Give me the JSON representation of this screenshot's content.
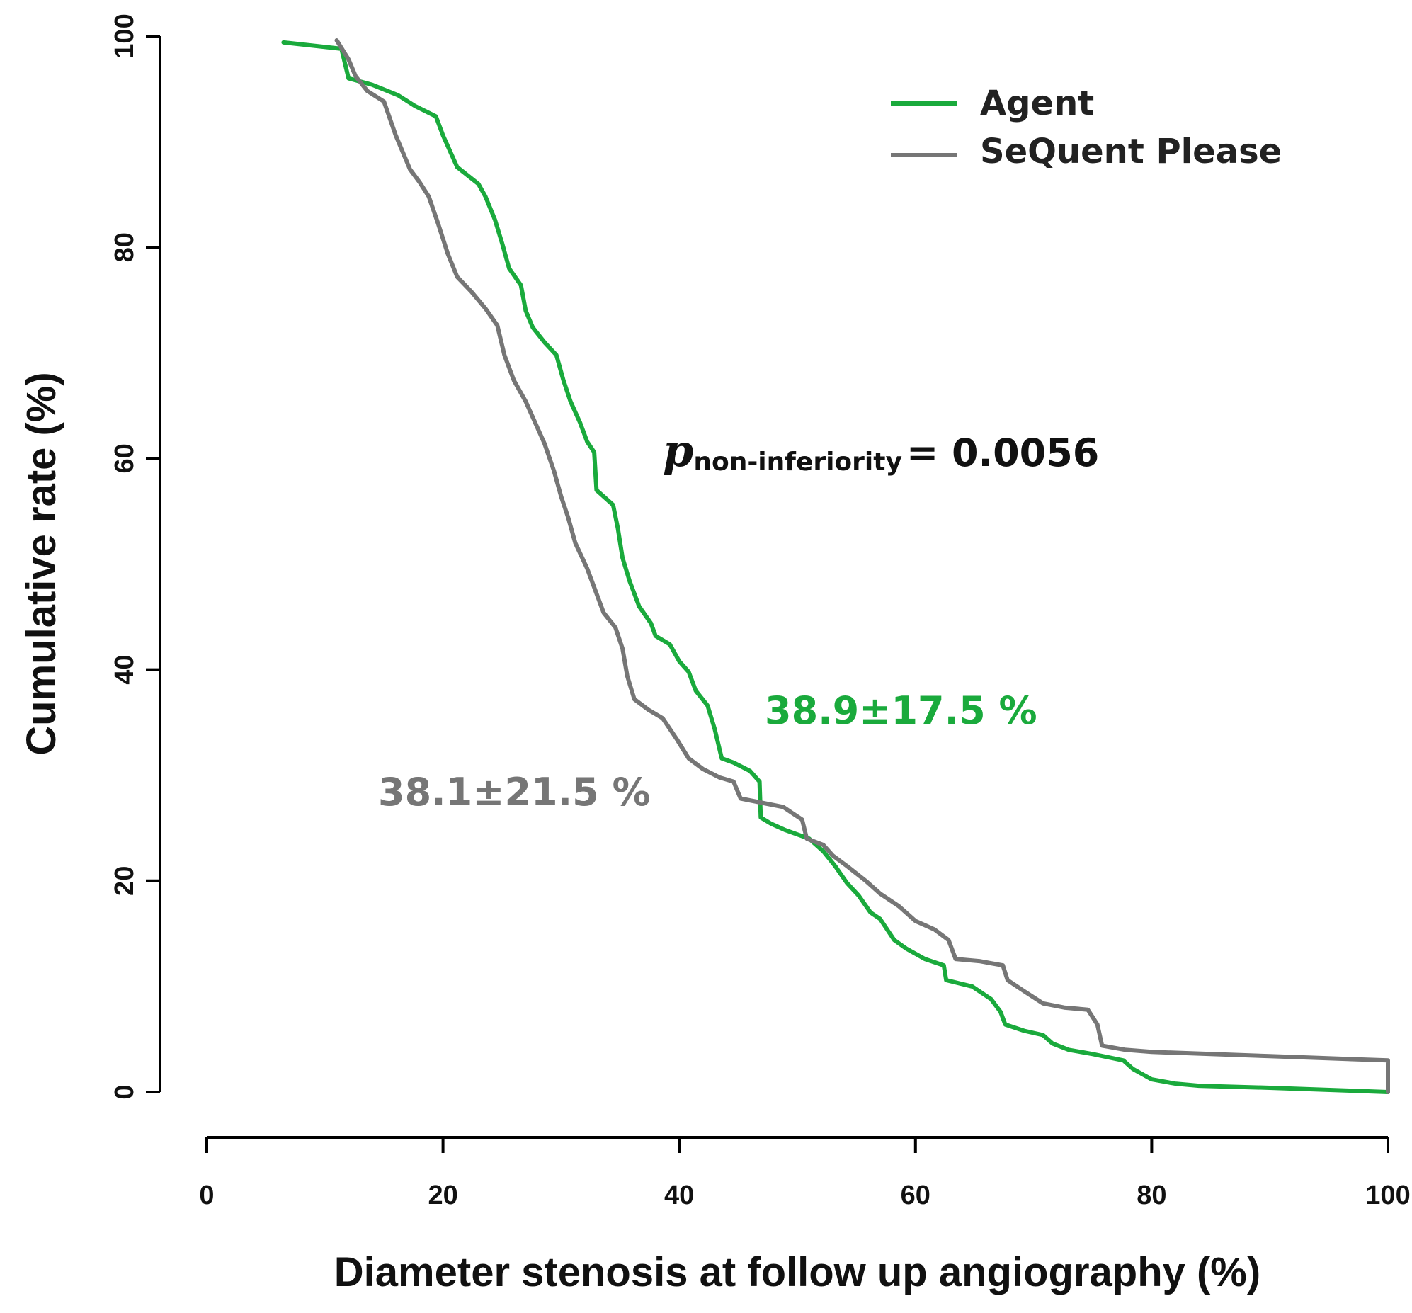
{
  "chart_data": {
    "type": "line",
    "title": "",
    "xlabel": "Diameter stenosis at follow up angiography (%)",
    "ylabel": "Cumulative rate (%)",
    "xlim": [
      0,
      100
    ],
    "ylim": [
      0,
      100
    ],
    "x_ticks": [
      "0",
      "20",
      "40",
      "60",
      "80",
      "100"
    ],
    "y_ticks": [
      "0",
      "20",
      "40",
      "60",
      "80",
      "100"
    ],
    "grid": false,
    "legend_position": "top-right",
    "series": [
      {
        "name": "Agent",
        "color": "#1aaa3c",
        "points": [
          [
            6.5,
            99.4
          ],
          [
            11.4,
            98.8
          ],
          [
            12.0,
            96.0
          ],
          [
            14.0,
            95.4
          ],
          [
            16.2,
            94.4
          ],
          [
            17.6,
            93.4
          ],
          [
            19.4,
            92.4
          ],
          [
            20.0,
            90.6
          ],
          [
            21.2,
            87.6
          ],
          [
            23.0,
            86.0
          ],
          [
            23.6,
            84.8
          ],
          [
            24.4,
            82.6
          ],
          [
            25.0,
            80.4
          ],
          [
            25.6,
            78.0
          ],
          [
            26.6,
            76.4
          ],
          [
            27.0,
            74.0
          ],
          [
            27.6,
            72.4
          ],
          [
            28.6,
            71.0
          ],
          [
            29.6,
            69.8
          ],
          [
            30.2,
            67.4
          ],
          [
            30.8,
            65.4
          ],
          [
            31.6,
            63.4
          ],
          [
            32.2,
            61.6
          ],
          [
            32.8,
            60.6
          ],
          [
            33.0,
            57.0
          ],
          [
            34.4,
            55.6
          ],
          [
            34.8,
            53.4
          ],
          [
            35.2,
            50.6
          ],
          [
            35.8,
            48.4
          ],
          [
            36.6,
            46.0
          ],
          [
            37.6,
            44.4
          ],
          [
            38.0,
            43.2
          ],
          [
            39.2,
            42.4
          ],
          [
            40.0,
            40.8
          ],
          [
            40.8,
            39.8
          ],
          [
            41.4,
            38.0
          ],
          [
            42.4,
            36.6
          ],
          [
            43.0,
            34.4
          ],
          [
            43.6,
            31.6
          ],
          [
            44.6,
            31.2
          ],
          [
            46.0,
            30.4
          ],
          [
            46.8,
            29.4
          ],
          [
            46.9,
            26.0
          ],
          [
            47.8,
            25.4
          ],
          [
            49.0,
            24.8
          ],
          [
            51.0,
            24.0
          ],
          [
            52.2,
            22.8
          ],
          [
            53.2,
            21.4
          ],
          [
            54.2,
            19.8
          ],
          [
            55.2,
            18.6
          ],
          [
            56.2,
            17.0
          ],
          [
            57.0,
            16.4
          ],
          [
            58.2,
            14.4
          ],
          [
            59.2,
            13.6
          ],
          [
            60.8,
            12.6
          ],
          [
            62.4,
            12.0
          ],
          [
            62.6,
            10.6
          ],
          [
            64.8,
            10.0
          ],
          [
            66.4,
            8.8
          ],
          [
            67.2,
            7.6
          ],
          [
            67.6,
            6.4
          ],
          [
            69.2,
            5.8
          ],
          [
            70.8,
            5.4
          ],
          [
            71.6,
            4.6
          ],
          [
            73.0,
            4.0
          ],
          [
            75.0,
            3.6
          ],
          [
            77.6,
            3.0
          ],
          [
            78.4,
            2.2
          ],
          [
            80.0,
            1.2
          ],
          [
            82.0,
            0.8
          ],
          [
            84.0,
            0.6
          ],
          [
            90.0,
            0.4
          ],
          [
            100.0,
            0.0
          ]
        ]
      },
      {
        "name": "SeQuent Please",
        "color": "#767676",
        "points": [
          [
            11.0,
            99.6
          ],
          [
            12.0,
            97.8
          ],
          [
            12.6,
            96.2
          ],
          [
            13.6,
            94.8
          ],
          [
            15.0,
            93.8
          ],
          [
            16.0,
            90.6
          ],
          [
            17.2,
            87.4
          ],
          [
            18.0,
            86.2
          ],
          [
            18.8,
            84.8
          ],
          [
            19.6,
            82.2
          ],
          [
            20.4,
            79.4
          ],
          [
            21.2,
            77.2
          ],
          [
            22.4,
            75.8
          ],
          [
            23.6,
            74.2
          ],
          [
            24.6,
            72.6
          ],
          [
            25.2,
            69.8
          ],
          [
            26.0,
            67.4
          ],
          [
            27.0,
            65.4
          ],
          [
            27.8,
            63.4
          ],
          [
            28.6,
            61.4
          ],
          [
            29.4,
            58.8
          ],
          [
            30.0,
            56.4
          ],
          [
            30.6,
            54.4
          ],
          [
            31.2,
            52.0
          ],
          [
            32.2,
            49.6
          ],
          [
            32.8,
            47.8
          ],
          [
            33.6,
            45.4
          ],
          [
            34.6,
            44.0
          ],
          [
            35.2,
            42.0
          ],
          [
            35.6,
            39.4
          ],
          [
            36.2,
            37.2
          ],
          [
            37.4,
            36.2
          ],
          [
            38.6,
            35.4
          ],
          [
            39.8,
            33.4
          ],
          [
            40.8,
            31.6
          ],
          [
            42.0,
            30.6
          ],
          [
            43.4,
            29.8
          ],
          [
            44.6,
            29.4
          ],
          [
            45.2,
            27.8
          ],
          [
            47.0,
            27.4
          ],
          [
            48.8,
            27.0
          ],
          [
            49.6,
            26.4
          ],
          [
            50.4,
            25.8
          ],
          [
            50.8,
            24.0
          ],
          [
            52.2,
            23.4
          ],
          [
            53.0,
            22.4
          ],
          [
            54.2,
            21.4
          ],
          [
            55.8,
            20.0
          ],
          [
            57.0,
            18.8
          ],
          [
            58.6,
            17.6
          ],
          [
            60.0,
            16.2
          ],
          [
            61.6,
            15.4
          ],
          [
            62.8,
            14.4
          ],
          [
            63.4,
            12.6
          ],
          [
            65.4,
            12.4
          ],
          [
            67.4,
            12.0
          ],
          [
            67.8,
            10.6
          ],
          [
            69.4,
            9.4
          ],
          [
            70.8,
            8.4
          ],
          [
            72.6,
            8.0
          ],
          [
            74.6,
            7.8
          ],
          [
            75.4,
            6.4
          ],
          [
            75.8,
            4.4
          ],
          [
            77.8,
            4.0
          ],
          [
            80.0,
            3.8
          ],
          [
            90.0,
            3.4
          ],
          [
            100.0,
            3.0
          ],
          [
            100.0,
            0.0
          ]
        ]
      }
    ],
    "annotations": {
      "p_label": "p",
      "p_subscript": "non-inferiority",
      "p_value": "= 0.0056",
      "agent_stat": "38.9±17.5 %",
      "sequent_stat": "38.1±21.5 %"
    }
  }
}
